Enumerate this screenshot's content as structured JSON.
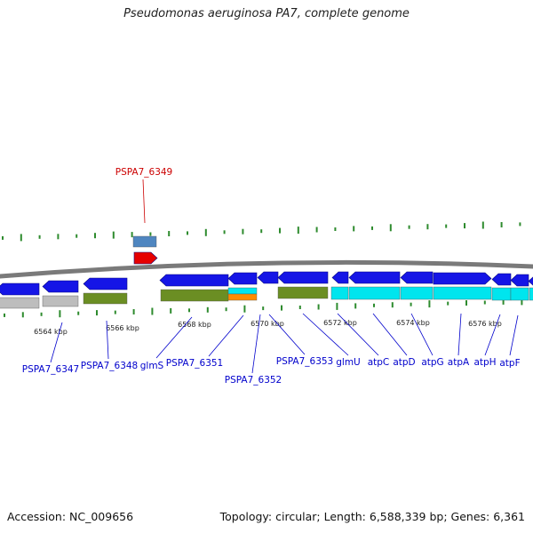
{
  "title": "Pseudomonas aeruginosa PA7, complete genome",
  "footer": {
    "accession": "Accession: NC_009656",
    "summary": "Topology: circular; Length: 6,588,339 bp; Genes: 6,361"
  },
  "colors": {
    "backbone": "#7a7a7a",
    "cds": "#1515e6",
    "highlight_cds": "#e60000",
    "rna_blue": "#4f86c0",
    "cog_green": "#6b8e23",
    "cog_gray": "#bdbdbd",
    "cog_cyan": "#00e5ee",
    "cog_orange": "#ff8c00",
    "tick": "#2e8b2e",
    "label_blue": "#0000cc",
    "label_red": "#cc0000"
  },
  "kbp_ticks": [
    "6564 kbp",
    "6566 kbp",
    "6568 kbp",
    "6570 kbp",
    "6572 kbp",
    "6574 kbp",
    "6576 kbp"
  ],
  "gene_labels": [
    {
      "text": "PSPA7_6349",
      "highlight": true
    },
    {
      "text": "PSPA7_6347"
    },
    {
      "text": "PSPA7_6348"
    },
    {
      "text": "glmS"
    },
    {
      "text": "PSPA7_6351"
    },
    {
      "text": "PSPA7_6352"
    },
    {
      "text": "PSPA7_6353"
    },
    {
      "text": "glmU"
    },
    {
      "text": "atpC"
    },
    {
      "text": "atpD"
    },
    {
      "text": "atpG"
    },
    {
      "text": "atpA"
    },
    {
      "text": "atpH"
    },
    {
      "text": "atpF"
    }
  ]
}
